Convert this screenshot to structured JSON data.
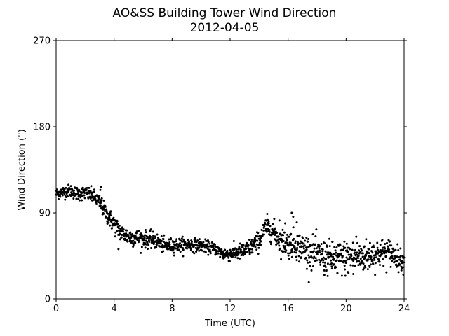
{
  "chart_data": {
    "type": "scatter",
    "title": "AO&SS Building Tower Wind Direction",
    "subtitle": "2012-04-05",
    "xlabel": "Time (UTC)",
    "ylabel": "Wind Direction (°)",
    "xlim": [
      0,
      24
    ],
    "ylim": [
      0,
      270
    ],
    "xticks": [
      0,
      4,
      8,
      12,
      16,
      20,
      24
    ],
    "xtick_labels": [
      "0",
      "4",
      "8",
      "12",
      "16",
      "20",
      "24"
    ],
    "yticks": [
      0,
      90,
      180,
      270
    ],
    "ytick_labels": [
      "0",
      "90",
      "180",
      "270"
    ],
    "grid": false,
    "marker_color": "#000000",
    "trend": [
      [
        0.0,
        110
      ],
      [
        0.5,
        112
      ],
      [
        1.0,
        113
      ],
      [
        1.5,
        110
      ],
      [
        2.0,
        111
      ],
      [
        2.5,
        108
      ],
      [
        3.0,
        101
      ],
      [
        3.5,
        88
      ],
      [
        4.0,
        78
      ],
      [
        4.5,
        69
      ],
      [
        5.0,
        65
      ],
      [
        6.0,
        63
      ],
      [
        7.0,
        60
      ],
      [
        7.5,
        55
      ],
      [
        8.0,
        56
      ],
      [
        9.0,
        57
      ],
      [
        10.0,
        56
      ],
      [
        11.0,
        52
      ],
      [
        11.5,
        47
      ],
      [
        12.0,
        47
      ],
      [
        13.0,
        50
      ],
      [
        13.5,
        55
      ],
      [
        14.0,
        61
      ],
      [
        14.5,
        76
      ],
      [
        15.0,
        70
      ],
      [
        15.5,
        60
      ],
      [
        16.0,
        58
      ],
      [
        16.5,
        57
      ],
      [
        17.0,
        53
      ],
      [
        18.0,
        46
      ],
      [
        19.0,
        42
      ],
      [
        20.0,
        43
      ],
      [
        21.0,
        44
      ],
      [
        22.0,
        47
      ],
      [
        23.0,
        49
      ],
      [
        24.0,
        38
      ]
    ],
    "spread": [
      [
        0.0,
        3
      ],
      [
        3.0,
        4
      ],
      [
        4.0,
        5
      ],
      [
        7.0,
        4
      ],
      [
        11.0,
        3
      ],
      [
        14.0,
        5
      ],
      [
        16.0,
        7
      ],
      [
        17.0,
        8
      ],
      [
        20.0,
        9
      ],
      [
        23.0,
        7
      ],
      [
        24.0,
        5
      ]
    ],
    "outliers": [
      [
        3.05,
        114
      ],
      [
        3.1,
        117
      ],
      [
        4.3,
        52
      ],
      [
        15.4,
        82
      ],
      [
        15.8,
        79
      ],
      [
        16.25,
        90
      ],
      [
        16.35,
        86
      ],
      [
        16.6,
        80
      ],
      [
        20.7,
        65
      ],
      [
        18.5,
        25
      ],
      [
        19.4,
        27
      ],
      [
        20.5,
        26
      ],
      [
        21.5,
        31
      ]
    ],
    "n_points": 1440
  }
}
